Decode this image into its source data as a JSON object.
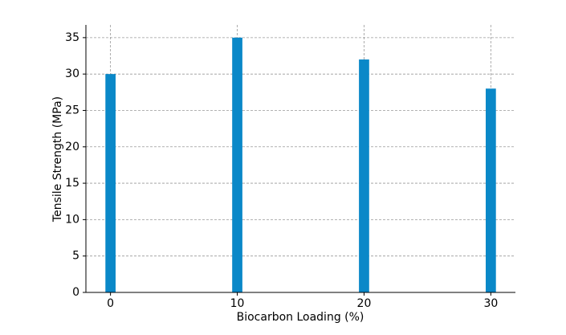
{
  "chart_data": {
    "type": "bar",
    "x_label": "Biocarbon Loading (%)",
    "y_label": "Tensile Strength (MPa)",
    "x": [
      0,
      10,
      20,
      30
    ],
    "values": [
      30,
      35,
      32,
      28
    ],
    "color": "#0a88c8",
    "xlim": [
      -1.94,
      31.94
    ],
    "xticks": [
      0,
      10,
      20,
      30
    ],
    "ylim": [
      0,
      36.75
    ],
    "yticks": [
      0,
      5,
      10,
      15,
      20,
      25,
      30,
      35
    ],
    "grid": true
  }
}
